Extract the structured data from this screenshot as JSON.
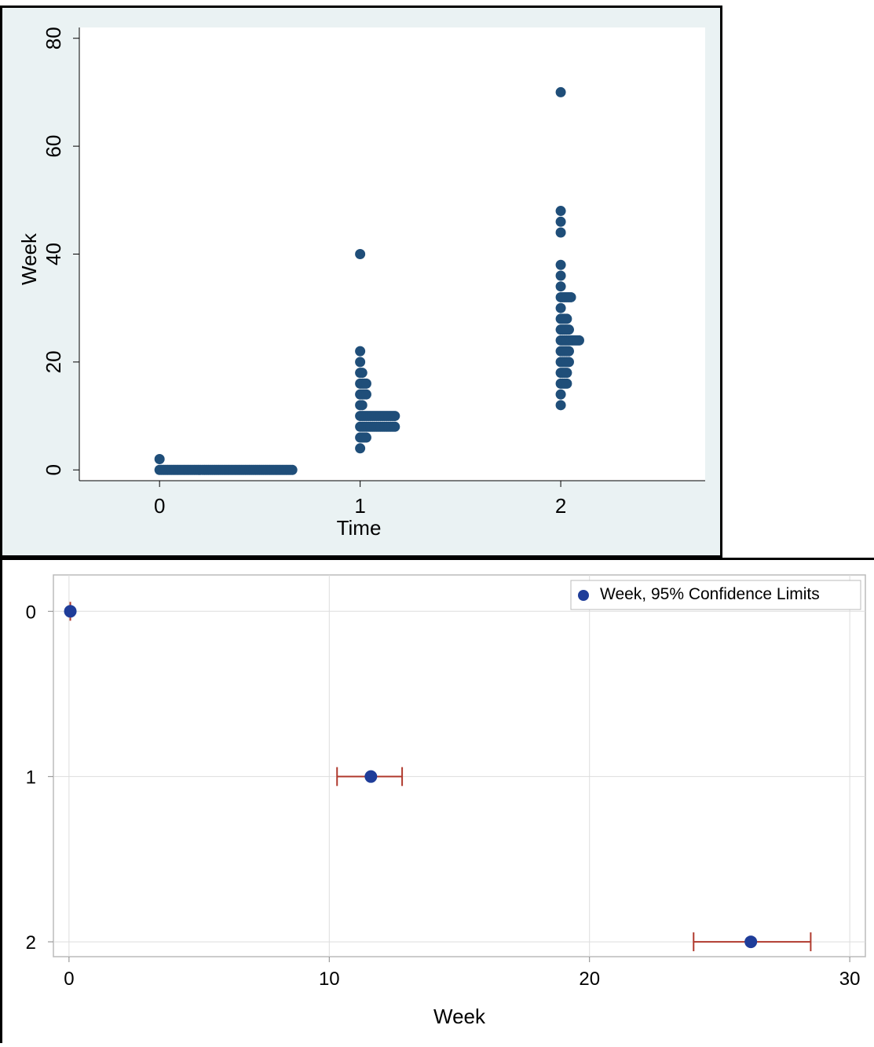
{
  "colors": {
    "marker": "#1f4e79",
    "marker_ci": "#1f3d99",
    "ci_line": "#b03a2e",
    "top_background": "#eaf2f3",
    "gridline": "#dddddd"
  },
  "chart_data": [
    {
      "type": "scatter",
      "title": "",
      "xlabel": "Time",
      "ylabel": "Week",
      "xlim": [
        -0.4,
        2.72
      ],
      "ylim": [
        -2,
        82
      ],
      "xticks": [
        0,
        1,
        2
      ],
      "yticks": [
        0,
        20,
        40,
        60,
        80
      ],
      "grid": false,
      "series": [
        {
          "x_category": 0,
          "note_value_count": [
            {
              "y": 2,
              "count": 1
            },
            {
              "y": 0,
              "count": 66
            }
          ]
        },
        {
          "x_category": 1,
          "note_value_count": [
            {
              "y": 40,
              "count": 1
            },
            {
              "y": 22,
              "count": 1
            },
            {
              "y": 20,
              "count": 1
            },
            {
              "y": 18,
              "count": 2
            },
            {
              "y": 16,
              "count": 4
            },
            {
              "y": 14,
              "count": 4
            },
            {
              "y": 12,
              "count": 2
            },
            {
              "y": 10,
              "count": 18
            },
            {
              "y": 8,
              "count": 18
            },
            {
              "y": 6,
              "count": 4
            },
            {
              "y": 4,
              "count": 1
            }
          ]
        },
        {
          "x_category": 2,
          "note_value_count": [
            {
              "y": 70,
              "count": 1
            },
            {
              "y": 48,
              "count": 1
            },
            {
              "y": 46,
              "count": 1
            },
            {
              "y": 44,
              "count": 1
            },
            {
              "y": 38,
              "count": 1
            },
            {
              "y": 36,
              "count": 1
            },
            {
              "y": 34,
              "count": 1
            },
            {
              "y": 32,
              "count": 6
            },
            {
              "y": 30,
              "count": 1
            },
            {
              "y": 28,
              "count": 4
            },
            {
              "y": 26,
              "count": 5
            },
            {
              "y": 24,
              "count": 10
            },
            {
              "y": 22,
              "count": 5
            },
            {
              "y": 20,
              "count": 5
            },
            {
              "y": 18,
              "count": 4
            },
            {
              "y": 16,
              "count": 4
            },
            {
              "y": 14,
              "count": 1
            },
            {
              "y": 12,
              "count": 1
            }
          ]
        }
      ]
    },
    {
      "type": "scatter",
      "title": "",
      "xlabel": "Week",
      "ylabel": "",
      "xlim": [
        -0.6,
        30.6
      ],
      "ylim": [
        2.09,
        -0.22
      ],
      "xticks": [
        0,
        10,
        20,
        30
      ],
      "yticks": [
        0,
        1,
        2
      ],
      "grid": true,
      "legend_position": "top-right",
      "legend": [
        "Week, 95% Confidence Limits"
      ],
      "points": [
        {
          "y": 0,
          "x": 0.05,
          "lower": -0.05,
          "upper": 0.05
        },
        {
          "y": 1,
          "x": 11.6,
          "lower": 10.3,
          "upper": 12.8
        },
        {
          "y": 2,
          "x": 26.2,
          "lower": 24.0,
          "upper": 28.5
        }
      ]
    }
  ]
}
